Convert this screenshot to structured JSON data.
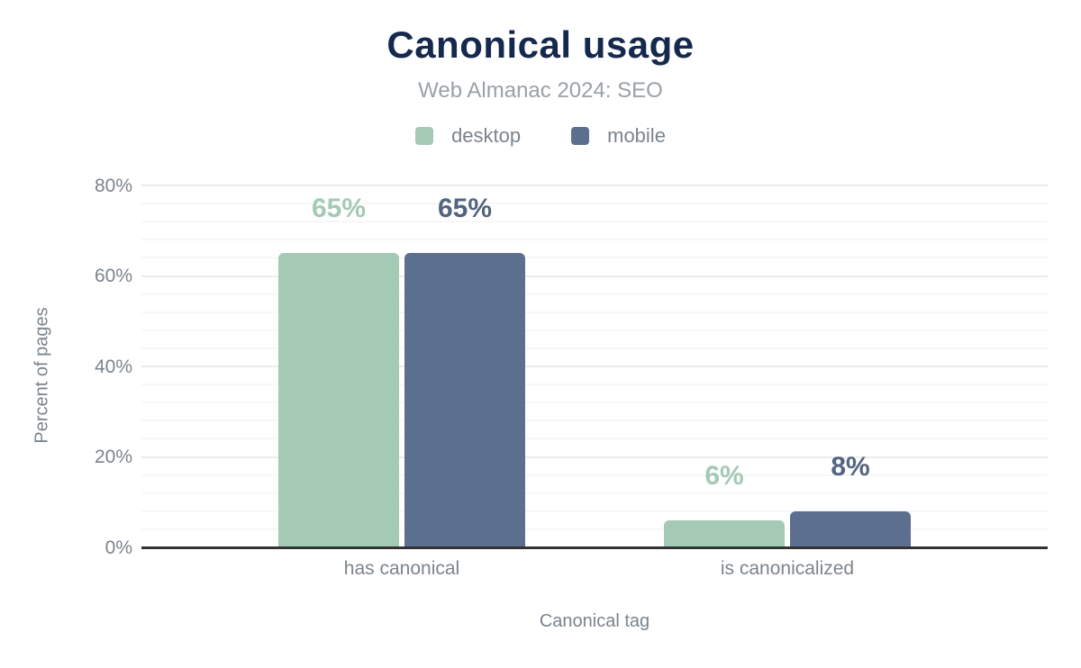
{
  "header": {
    "title": "Canonical usage",
    "subtitle": "Web Almanac 2024: SEO"
  },
  "colors": {
    "title": "#15294e",
    "subtitle": "#9aa1a8",
    "axis_text": "#7b848c",
    "baseline": "#333333",
    "grid_major": "#ececec",
    "grid_minor": "#f7f7f7",
    "desktop": "#a4c9b5",
    "mobile": "#5d6f8f"
  },
  "chart_data": {
    "type": "bar",
    "title": "Canonical usage",
    "subtitle": "Web Almanac 2024: SEO",
    "categories": [
      "has canonical",
      "is canonicalized"
    ],
    "series": [
      {
        "name": "desktop",
        "values": [
          65,
          6
        ],
        "labels": [
          "65%",
          "6%"
        ],
        "color": "#a4c9b5",
        "label_color": "#a4c9b5"
      },
      {
        "name": "mobile",
        "values": [
          65,
          8
        ],
        "labels": [
          "65%",
          "8%"
        ],
        "color": "#5d6f8f",
        "label_color": "#526480"
      }
    ],
    "xlabel": "Canonical tag",
    "ylabel": "Percent of pages",
    "ylim": [
      0,
      80
    ],
    "yticks": [
      0,
      20,
      40,
      60,
      80
    ],
    "ytick_labels": [
      "0%",
      "20%",
      "40%",
      "60%",
      "80%"
    ],
    "minor_grid_step_pct": 4,
    "grid": "horizontal",
    "legend_position": "top"
  }
}
